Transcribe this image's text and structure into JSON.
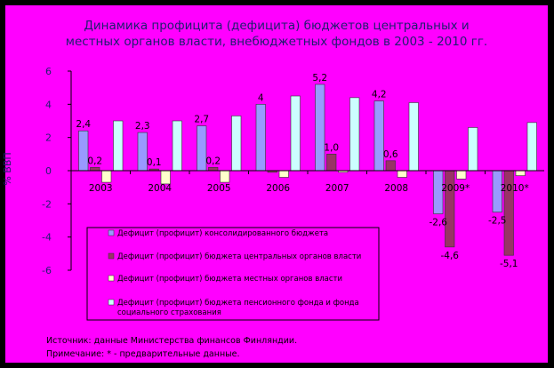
{
  "chart_data": {
    "type": "bar",
    "title_lines": [
      "Динамика профицита (дефицита) бюджетов центральных и",
      "местных органов власти, внебюджетных фондов в 2003 - 2010 гг."
    ],
    "ylabel": "% ВВП",
    "ylim": [
      -6,
      6
    ],
    "yticks": [
      -6,
      -4,
      -2,
      0,
      2,
      4,
      6
    ],
    "grid": false,
    "legend_position": "lower-center",
    "categories": [
      "2003",
      "2004",
      "2005",
      "2006",
      "2007",
      "2008",
      "2009*",
      "2010*"
    ],
    "series": [
      {
        "name": "Дефицит (профицит) консолидированного бюджета",
        "color": "#9999FF",
        "values": [
          2.4,
          2.3,
          2.7,
          4.0,
          5.2,
          4.2,
          -2.6,
          -2.5
        ],
        "labels": [
          "2,4",
          "2,3",
          "2,7",
          "4",
          "5,2",
          "4,2",
          "-2,6",
          "-2,5"
        ]
      },
      {
        "name": "Дефицит (профицит) бюджета центральных органов власти",
        "color": "#993366",
        "values": [
          0.2,
          0.1,
          0.2,
          -0.1,
          1.0,
          0.6,
          -4.6,
          -5.1
        ],
        "labels": [
          "0,2",
          "0,1",
          "0,2",
          "",
          "1,0",
          "0,6",
          "-4,6",
          "-5,1"
        ]
      },
      {
        "name": "Дефицит (профицит) бюджета местных органов власти",
        "color": "#FFFFCC",
        "values": [
          -0.7,
          -0.8,
          -0.7,
          -0.4,
          -0.1,
          -0.4,
          -0.5,
          -0.3
        ],
        "labels": [
          "",
          "",
          "",
          "",
          "",
          "",
          "",
          ""
        ]
      },
      {
        "name": "Дефицит (профицит) бюджета пенсионного фонда и фонда социального страхования",
        "color": "#CCFFFF",
        "values": [
          3.0,
          3.0,
          3.3,
          4.5,
          4.4,
          4.1,
          2.6,
          2.9
        ],
        "labels": [
          "",
          "",
          "",
          "",
          "",
          "",
          "",
          ""
        ]
      }
    ],
    "notes": [
      "Источник: данные Министерства финансов Финляндии.",
      "Примечание: * - предварительные данные."
    ]
  }
}
